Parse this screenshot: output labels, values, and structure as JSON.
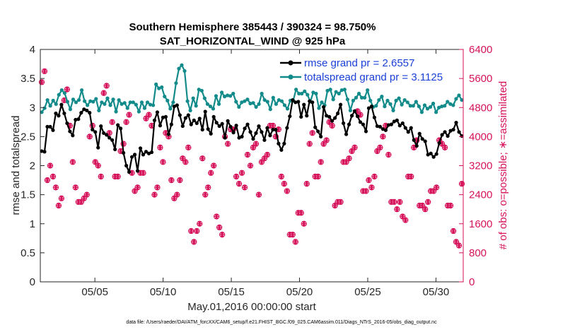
{
  "chart_data": {
    "type": "line",
    "title": "Southern Hemisphere 385443 / 390324 = 98.750%",
    "subtitle": "SAT_HORIZONTAL_WIND @ 925 hPa",
    "xlabel": "May.01,2016 00:00:00 start",
    "ylabel": "rmse and totalspread",
    "ylabel_right": "# of obs: o=possible; ∗=assimilated",
    "footnote": "data file: /Users/raeder/DAI/ATM_forcXX/CAM6_setup/f.e21.FHIST_BGC.f09_025.CAM6assim.011/Diags_NTrS_2016-05/obs_diag_output.nc",
    "xlim": [
      1,
      32
    ],
    "ylim": [
      0,
      4
    ],
    "ylim_right": [
      0,
      6400
    ],
    "x_tick_values": [
      5,
      10,
      15,
      20,
      25,
      30
    ],
    "x_tick_labels": [
      "05/05",
      "05/10",
      "05/15",
      "05/20",
      "05/25",
      "05/30"
    ],
    "y_ticks": [
      "0",
      "0.5",
      "1",
      "1.5",
      "2",
      "2.5",
      "3",
      "3.5",
      "4"
    ],
    "y_right_ticks": [
      "0",
      "800",
      "1600",
      "2400",
      "3200",
      "4000",
      "4800",
      "5600",
      "6400"
    ],
    "series_axis_left": [
      {
        "name": "rmse grand pr = 2.6557",
        "color": "#000000",
        "marker": "dot",
        "values": [
          2.25,
          2.24,
          2.67,
          2.67,
          2.61,
          2.9,
          2.86,
          3.05,
          2.9,
          2.73,
          2.59,
          2.52,
          2.79,
          2.8,
          2.91,
          2.97,
          2.95,
          2.91,
          2.62,
          2.58,
          2.31,
          2.68,
          2.56,
          2.53,
          2.48,
          2.44,
          2.28,
          2.7,
          2.64,
          2.22,
          2.0,
          1.89,
          2.15,
          2.19,
          1.91,
          2.3,
          2.19,
          2.24,
          2.21,
          2.23,
          2.78,
          2.92,
          2.69,
          2.83,
          2.84,
          2.54,
          2.71,
          3.02,
          3.04,
          2.87,
          2.68,
          2.82,
          2.87,
          2.71,
          2.78,
          2.73,
          2.81,
          2.62,
          2.93,
          2.63,
          2.55,
          2.84,
          2.74,
          2.68,
          2.72,
          2.48,
          2.77,
          2.67,
          2.57,
          2.69,
          2.48,
          2.5,
          2.64,
          2.71,
          2.58,
          2.46,
          2.56,
          2.68,
          2.58,
          2.44,
          2.65,
          2.52,
          2.62,
          2.62,
          2.38,
          2.27,
          2.38,
          2.65,
          2.85,
          3.13,
          3.09,
          3.1,
          2.84,
          3.05,
          2.86,
          3.11,
          3.09,
          2.66,
          2.59,
          2.5,
          3.01,
          2.86,
          2.84,
          2.77,
          2.82,
          2.9,
          3.05,
          2.73,
          2.54,
          2.71,
          2.86,
          2.94,
          2.85,
          2.75,
          2.71,
          2.59,
          2.99,
          3.02,
          2.83,
          2.68,
          2.67,
          2.63,
          2.61,
          2.7,
          2.71,
          2.76,
          2.78,
          2.69,
          2.73,
          2.65,
          2.58,
          2.65,
          2.44,
          2.34,
          2.55,
          2.46,
          2.42,
          2.19,
          2.21,
          2.15,
          2.2,
          2.39,
          2.53,
          2.58,
          2.51,
          2.6,
          2.62,
          2.74,
          2.58,
          2.51
        ]
      },
      {
        "name": "totalspread grand pr = 3.1125",
        "color": "#138b8b",
        "marker": "dot",
        "values": [
          2.92,
          2.99,
          3.13,
          3.03,
          3.12,
          3.06,
          3.22,
          3.3,
          3.25,
          3.1,
          2.97,
          3.14,
          3.09,
          3.13,
          3.3,
          3.11,
          3.04,
          3.11,
          3.1,
          3.15,
          2.95,
          3.09,
          3.06,
          3.16,
          3.04,
          3.14,
          2.93,
          3.13,
          3.06,
          3.08,
          2.99,
          3.09,
          3.09,
          3.05,
          2.93,
          3.09,
          2.99,
          3.09,
          3.05,
          3.04,
          3.4,
          3.33,
          3.35,
          3.19,
          3.12,
          2.98,
          3.09,
          3.42,
          3.67,
          3.73,
          3.63,
          3.11,
          2.95,
          3.16,
          3.03,
          3.31,
          3.29,
          3.16,
          3.06,
          3.02,
          2.98,
          3.2,
          3.06,
          3.26,
          3.19,
          3.21,
          3.2,
          3.24,
          3.1,
          3.01,
          3.09,
          3.11,
          3.14,
          3.07,
          3.08,
          3.01,
          3.06,
          3.24,
          3.13,
          3.1,
          2.97,
          3.17,
          3.06,
          3.13,
          3.11,
          3.04,
          2.98,
          3.12,
          3.12,
          3.31,
          3.24,
          3.24,
          3.28,
          3.22,
          3.1,
          3.26,
          3.24,
          2.99,
          3.09,
          3.04,
          3.29,
          3.31,
          3.14,
          3.27,
          3.24,
          3.3,
          3.31,
          3.14,
          2.95,
          3.12,
          3.17,
          3.24,
          3.17,
          3.17,
          3.3,
          3.12,
          3.01,
          3.03,
          3.13,
          3.19,
          3.02,
          3.12,
          3.06,
          2.95,
          3.12,
          3.16,
          3.05,
          3.13,
          3.09,
          3.03,
          3.03,
          3.1,
          3.02,
          2.92,
          3.04,
          2.98,
          3.01,
          3.07,
          2.92,
          3.0,
          3.02,
          3.03,
          3.1,
          3.06,
          3.04,
          3.15,
          3.21,
          3.13
        ]
      }
    ],
    "series_axis_right": [
      {
        "name": "possible",
        "color": "#d6125a",
        "marker": "o",
        "values": [
          5500,
          5800,
          2800,
          3200,
          2900,
          2600,
          2100,
          2300,
          5000,
          5300,
          4300,
          3300,
          2600,
          2200,
          2200,
          2300,
          2400,
          4000,
          4300,
          3300,
          3200,
          2900,
          5200,
          5400,
          4100,
          4400,
          2900,
          2900,
          3600,
          3800,
          4400,
          4600,
          3000,
          2500,
          2600,
          3000,
          3000,
          4500,
          4600,
          4300,
          2400,
          2600,
          3700,
          3300,
          4100,
          4000,
          2800,
          2300,
          2400,
          2800,
          3400,
          3300,
          3700,
          1400,
          1100,
          1400,
          1600,
          3400,
          2400,
          2600,
          3000,
          3200,
          1800,
          1500,
          1300,
          4000,
          3800,
          4200,
          4200,
          2900,
          2700,
          3000,
          2600,
          3500,
          3200,
          3700,
          3800,
          2400,
          3300,
          3400,
          3500,
          4300,
          4300,
          4000,
          4200,
          2900,
          2700,
          2500,
          1300,
          1300,
          1100,
          1900,
          1900,
          1600,
          2700,
          3800,
          4100,
          2900,
          2900,
          3300,
          3800,
          3900,
          4400,
          4300,
          2100,
          2200,
          2200,
          3300,
          3300,
          3400,
          3600,
          3700,
          4700,
          4600,
          2500,
          2500,
          2800,
          2600,
          2900,
          3600,
          3700,
          4000,
          4300,
          3500,
          2200,
          2200,
          2000,
          2200,
          1800,
          1700,
          2900,
          2900,
          3700,
          3900,
          2100,
          2100,
          2000,
          2200,
          2500,
          2500,
          2600,
          3900,
          3800,
          3700,
          2100,
          2100,
          1400,
          1100,
          1000,
          2700
        ]
      },
      {
        "name": "assimilated",
        "color": "#d6125a",
        "marker": "*",
        "values": [
          5500,
          5800,
          2800,
          3200,
          2900,
          2600,
          2100,
          2300,
          5000,
          5300,
          4300,
          3300,
          2600,
          2200,
          2200,
          2300,
          2400,
          4000,
          4300,
          3300,
          3200,
          2900,
          5200,
          5400,
          4100,
          4400,
          2900,
          2900,
          3600,
          3800,
          4400,
          4600,
          3000,
          2500,
          2600,
          3000,
          3000,
          4500,
          4600,
          4300,
          2400,
          2600,
          3700,
          3300,
          4100,
          4000,
          2800,
          2300,
          2400,
          2800,
          3400,
          3300,
          3700,
          1400,
          1100,
          1400,
          1600,
          3400,
          2400,
          2600,
          3000,
          3200,
          1800,
          1500,
          1300,
          4000,
          3800,
          4200,
          4200,
          2900,
          2700,
          3000,
          2600,
          3500,
          3200,
          3700,
          3800,
          2400,
          3300,
          3400,
          3500,
          4300,
          4300,
          4000,
          4200,
          2900,
          2700,
          2500,
          1300,
          1300,
          1100,
          1900,
          1900,
          1600,
          2700,
          3800,
          4100,
          2900,
          2900,
          3300,
          3800,
          3900,
          4400,
          4300,
          2100,
          2200,
          2200,
          3300,
          3300,
          3400,
          3600,
          3700,
          4700,
          4600,
          2500,
          2500,
          2800,
          2600,
          2900,
          3600,
          3700,
          4000,
          4300,
          3500,
          2200,
          2200,
          2000,
          2200,
          1800,
          1700,
          2900,
          2900,
          3700,
          3900,
          2100,
          2100,
          2000,
          2200,
          2500,
          2500,
          2600,
          3900,
          3800,
          3700,
          2100,
          2100,
          1400,
          1100,
          1000,
          2700
        ]
      }
    ],
    "legend_position": "top-right",
    "grid": false
  }
}
